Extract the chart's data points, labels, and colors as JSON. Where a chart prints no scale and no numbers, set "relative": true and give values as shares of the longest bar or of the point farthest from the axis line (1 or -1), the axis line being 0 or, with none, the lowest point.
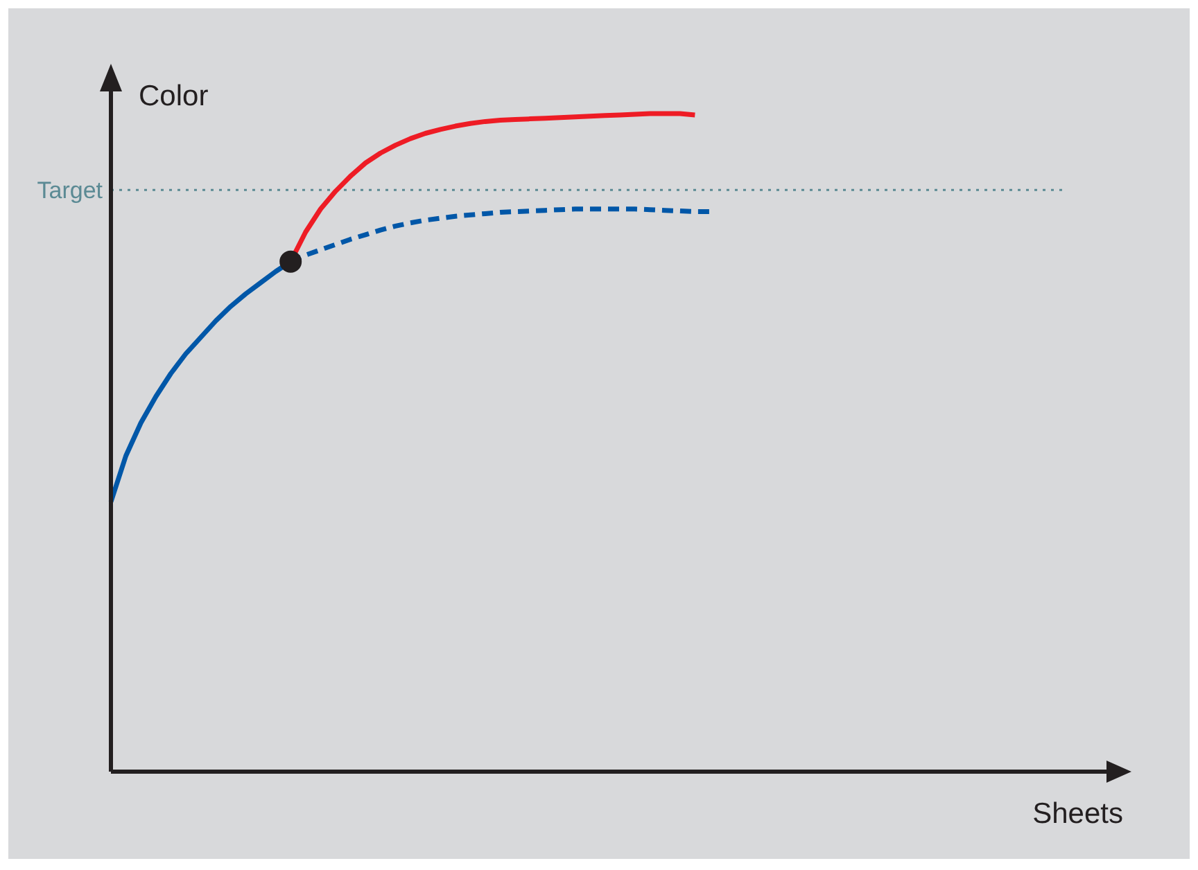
{
  "chart_data": {
    "type": "line",
    "relative": true,
    "annotations": [
      "Sheets"
    ],
    "ylabel": "Color",
    "categories": [
      null,
      null,
      null,
      null,
      null,
      null,
      null,
      null,
      null,
      null,
      null,
      null,
      null,
      null,
      null,
      null,
      null,
      null,
      null,
      null,
      null,
      null,
      null,
      null,
      null,
      null,
      null,
      null,
      null,
      null,
      null,
      null,
      null,
      null,
      null,
      null,
      null,
      null,
      null,
      null,
      null
    ],
    "series": [
      {
        "color": "#0057a8",
        "line_style": "solid",
        "values": [
          0.41,
          0.48,
          0.53,
          0.57,
          0.605,
          0.635,
          0.66,
          0.685,
          0.707,
          0.726,
          0.743,
          0.76,
          0.775,
          null,
          null,
          null,
          null,
          null,
          null,
          null,
          null,
          null,
          null,
          null,
          null,
          null,
          null,
          null,
          null,
          null,
          null,
          null,
          null,
          null,
          null,
          null,
          null,
          null,
          null,
          null,
          null
        ]
      },
      {
        "color": "#0057a8",
        "line_style": "dashed",
        "values": [
          null,
          null,
          null,
          null,
          null,
          null,
          null,
          null,
          null,
          null,
          null,
          null,
          0.775,
          0.785,
          0.793,
          0.801,
          0.809,
          0.816,
          0.823,
          0.829,
          0.834,
          0.838,
          0.841,
          0.844,
          0.846,
          0.848,
          0.85,
          0.851,
          0.852,
          0.853,
          0.854,
          0.855,
          0.855,
          0.855,
          0.855,
          0.855,
          0.854,
          0.853,
          0.852,
          0.851,
          0.851
        ]
      },
      {
        "color": "#ee1c25",
        "line_style": "solid",
        "values": [
          null,
          null,
          null,
          null,
          null,
          null,
          null,
          null,
          null,
          null,
          null,
          null,
          0.775,
          0.82,
          0.855,
          0.882,
          0.905,
          0.925,
          0.94,
          0.952,
          0.962,
          0.97,
          0.976,
          0.981,
          0.985,
          0.988,
          0.99,
          0.991,
          0.992,
          0.993,
          0.994,
          0.995,
          0.996,
          0.997,
          0.998,
          0.999,
          1,
          1,
          1,
          0.998,
          null
        ]
      }
    ],
    "ref_lines": [
      {
        "axis": "y",
        "value": 0.884,
        "label": "Target",
        "color": "#5b8a94",
        "line_style": "dotted"
      }
    ]
  }
}
